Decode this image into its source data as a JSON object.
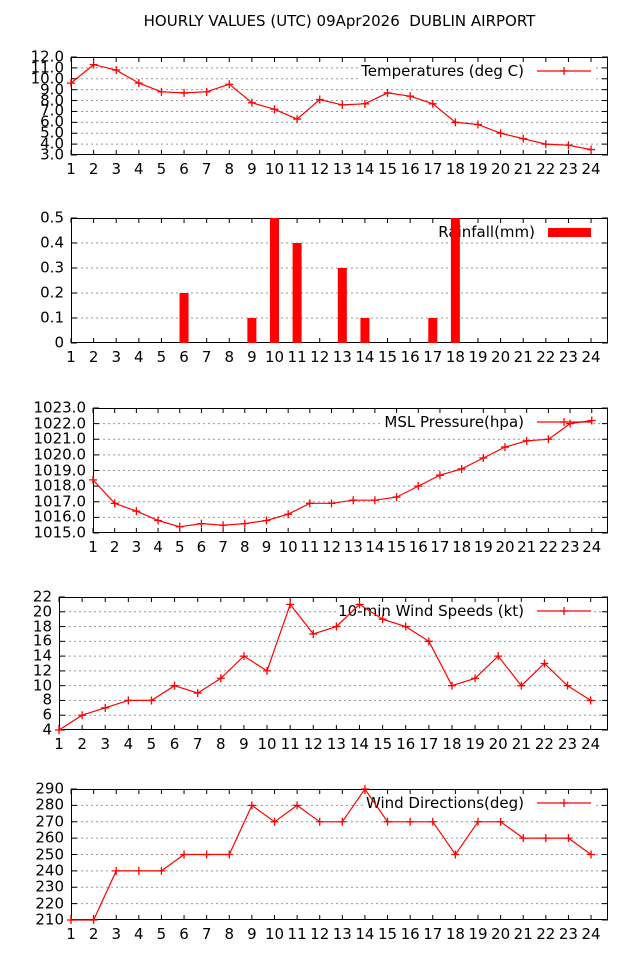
{
  "title": "HOURLY VALUES (UTC) 09Apr2026  DUBLIN AIRPORT",
  "colors": {
    "series": "#ff0000",
    "grid": "#999999",
    "axis": "#000000",
    "text": "#000000",
    "background": "#ffffff"
  },
  "chart_data": [
    {
      "name": "temperatures",
      "type": "line",
      "legend": "Temperatures (deg C)",
      "xlabel": "",
      "ylabel": "",
      "x": [
        1,
        2,
        3,
        4,
        5,
        6,
        7,
        8,
        9,
        10,
        11,
        12,
        13,
        14,
        15,
        16,
        17,
        18,
        19,
        20,
        21,
        22,
        23,
        24
      ],
      "values": [
        9.6,
        11.3,
        10.8,
        9.6,
        8.8,
        8.7,
        8.8,
        9.5,
        7.8,
        7.2,
        6.3,
        8.1,
        7.6,
        7.7,
        8.7,
        8.4,
        7.7,
        6.0,
        5.8,
        5.0,
        4.5,
        4.0,
        3.9,
        3.5
      ],
      "ylim": [
        3.0,
        12.0
      ],
      "xlim": [
        1,
        24.75
      ],
      "grid": true,
      "legend_position": "top-right",
      "ytick_values": [
        12,
        11,
        10,
        9,
        8,
        7,
        6,
        5,
        4,
        3
      ],
      "ytick_labels": [
        "12.0",
        "11.0",
        "10.0",
        "9.0",
        "8.0",
        "7.0",
        "6.0",
        "5.0",
        "4.0",
        "3.0"
      ]
    },
    {
      "name": "rainfall",
      "type": "bar",
      "legend": "Rainfall(mm)",
      "xlabel": "",
      "ylabel": "",
      "x": [
        1,
        2,
        3,
        4,
        5,
        6,
        7,
        8,
        9,
        10,
        11,
        12,
        13,
        14,
        15,
        16,
        17,
        18,
        19,
        20,
        21,
        22,
        23,
        24
      ],
      "values": [
        0,
        0,
        0,
        0,
        0,
        0.2,
        0,
        0,
        0.1,
        0.5,
        0.4,
        0,
        0.3,
        0.1,
        0,
        0,
        0.1,
        0.5,
        0,
        0,
        0,
        0,
        0,
        0
      ],
      "ylim": [
        0,
        0.5
      ],
      "xlim": [
        1,
        24.75
      ],
      "grid": true,
      "legend_position": "top-right",
      "ytick_values": [
        0.5,
        0.4,
        0.3,
        0.2,
        0.1,
        0
      ],
      "ytick_labels": [
        "0.5",
        "0.4",
        "0.3",
        "0.2",
        "0.1",
        "0"
      ]
    },
    {
      "name": "msl-pressure",
      "type": "line",
      "legend": "MSL Pressure(hpa)",
      "xlabel": "",
      "ylabel": "",
      "x": [
        1,
        2,
        3,
        4,
        5,
        6,
        7,
        8,
        9,
        10,
        11,
        12,
        13,
        14,
        15,
        16,
        17,
        18,
        19,
        20,
        21,
        22,
        23,
        24
      ],
      "values": [
        1018.4,
        1016.9,
        1016.4,
        1015.8,
        1015.4,
        1015.6,
        1015.5,
        1015.6,
        1015.8,
        1016.2,
        1016.9,
        1016.9,
        1017.1,
        1017.1,
        1017.3,
        1018.0,
        1018.7,
        1019.1,
        1019.8,
        1020.5,
        1020.9,
        1021.0,
        1022.0,
        1022.2
      ],
      "ylim": [
        1015.0,
        1023.0
      ],
      "xlim": [
        1,
        24.75
      ],
      "grid": true,
      "legend_position": "top-right",
      "ytick_values": [
        1023,
        1022,
        1021,
        1020,
        1019,
        1018,
        1017,
        1016,
        1015
      ],
      "ytick_labels": [
        "1023.0",
        "1022.0",
        "1021.0",
        "1020.0",
        "1019.0",
        "1018.0",
        "1017.0",
        "1016.0",
        "1015.0"
      ]
    },
    {
      "name": "wind-speeds",
      "type": "line",
      "legend": "10-min Wind Speeds (kt)",
      "xlabel": "",
      "ylabel": "",
      "x": [
        1,
        2,
        3,
        4,
        5,
        6,
        7,
        8,
        9,
        10,
        11,
        12,
        13,
        14,
        15,
        16,
        17,
        18,
        19,
        20,
        21,
        22,
        23,
        24
      ],
      "values": [
        4,
        6,
        7,
        8,
        8,
        10,
        9,
        11,
        14,
        12,
        21,
        17,
        18,
        21,
        19,
        18,
        16,
        10,
        11,
        14,
        10,
        13,
        10,
        8
      ],
      "ylim": [
        4,
        22
      ],
      "xlim": [
        1,
        24.75
      ],
      "grid": true,
      "legend_position": "top-right",
      "ytick_values": [
        22,
        20,
        18,
        16,
        14,
        12,
        10,
        8,
        6,
        4
      ],
      "ytick_labels": [
        "22",
        "20",
        "18",
        "16",
        "14",
        "12",
        "10",
        "8",
        "6",
        "4"
      ]
    },
    {
      "name": "wind-directions",
      "type": "line",
      "legend": "Wind Directions(deg)",
      "xlabel": "",
      "ylabel": "",
      "x": [
        1,
        2,
        3,
        4,
        5,
        6,
        7,
        8,
        9,
        10,
        11,
        12,
        13,
        14,
        15,
        16,
        17,
        18,
        19,
        20,
        21,
        22,
        23,
        24
      ],
      "values": [
        210,
        210,
        240,
        240,
        240,
        250,
        250,
        250,
        280,
        270,
        280,
        270,
        270,
        290,
        270,
        270,
        270,
        250,
        270,
        270,
        260,
        260,
        260,
        250
      ],
      "ylim": [
        210,
        290
      ],
      "xlim": [
        1,
        24.75
      ],
      "grid": true,
      "legend_position": "top-right",
      "ytick_values": [
        290,
        280,
        270,
        260,
        250,
        240,
        230,
        220,
        210
      ],
      "ytick_labels": [
        "290",
        "280",
        "270",
        "260",
        "250",
        "240",
        "230",
        "220",
        "210"
      ]
    }
  ]
}
